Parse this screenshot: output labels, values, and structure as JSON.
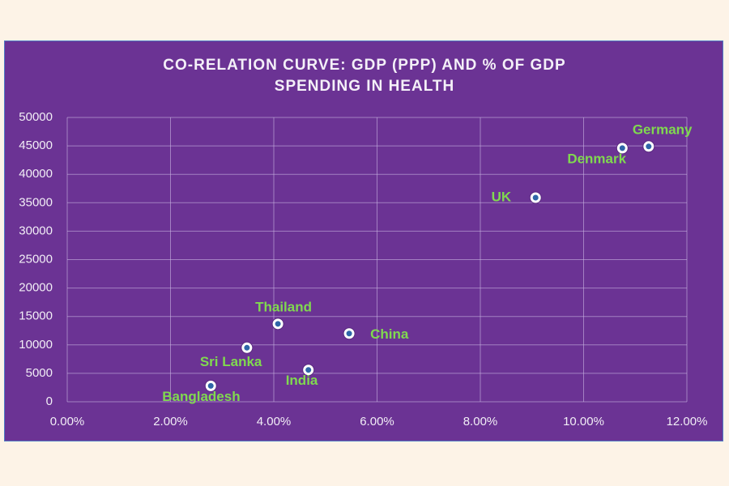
{
  "chart_data": {
    "type": "scatter",
    "title": "CO-RELATION CURVE: GDP (PPP) AND % OF GDP SPENDING IN HEALTH",
    "labels": [
      "Bangladesh",
      "Sri Lanka",
      "Thailand",
      "India",
      "China",
      "UK",
      "Denmark",
      "Germany"
    ],
    "x": [
      2.78,
      3.48,
      4.08,
      4.67,
      5.46,
      9.07,
      10.75,
      11.26
    ],
    "values": [
      2800,
      9500,
      13700,
      5600,
      12000,
      35900,
      44600,
      44900
    ],
    "xlim": [
      0,
      12
    ],
    "xticks": [
      {
        "value": 0,
        "label": "0.00%"
      },
      {
        "value": 2,
        "label": "2.00%"
      },
      {
        "value": 4,
        "label": "4.00%"
      },
      {
        "value": 6,
        "label": "6.00%"
      },
      {
        "value": 8,
        "label": "8.00%"
      },
      {
        "value": 10,
        "label": "10.00%"
      },
      {
        "value": 12,
        "label": "12.00%"
      }
    ],
    "ylim": [
      0,
      50000
    ],
    "yticks": [
      0,
      5000,
      10000,
      15000,
      20000,
      25000,
      30000,
      35000,
      40000,
      45000,
      50000
    ],
    "grid": true,
    "label_color": "#80d94f"
  }
}
